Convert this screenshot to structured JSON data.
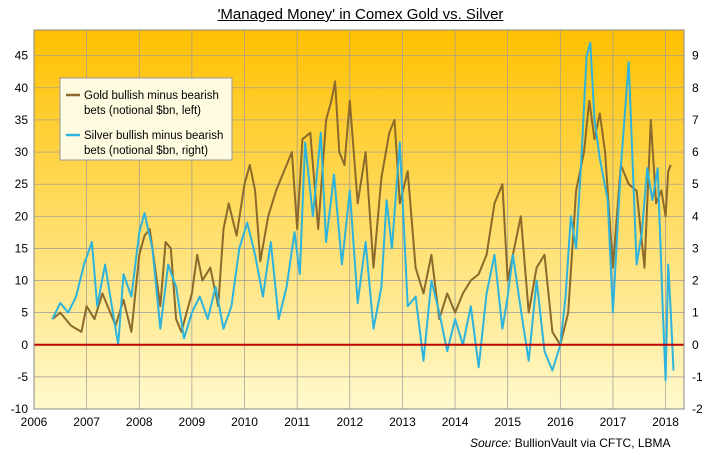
{
  "chart_data": {
    "type": "line",
    "title": "'Managed Money' in Comex Gold vs. Silver",
    "source_label": "Source:",
    "source_text": "BullionVault via CFTC, LBMA",
    "x_ticks": [
      "2006",
      "2007",
      "2008",
      "2009",
      "2010",
      "2011",
      "2012",
      "2013",
      "2014",
      "2015",
      "2016",
      "2017",
      "2018"
    ],
    "xlim": [
      2006,
      2018.35
    ],
    "left_axis": {
      "ylim": [
        -10,
        49
      ],
      "ticks": [
        "-10",
        "-5",
        "0",
        "5",
        "10",
        "15",
        "20",
        "25",
        "30",
        "35",
        "40",
        "45"
      ]
    },
    "right_axis": {
      "ylim": [
        -2,
        9.8
      ],
      "ticks": [
        "-2",
        "-1",
        "0",
        "1",
        "2",
        "3",
        "4",
        "5",
        "6",
        "7",
        "8",
        "9"
      ]
    },
    "zero_line_color": "#c00000",
    "background_gradient": [
      "#fff9cc",
      "#ffc000"
    ],
    "legend_position": "top-left",
    "series": [
      {
        "name": "Gold bullish minus bearish bets (notional $bn, left)",
        "color": "#8b6a2b",
        "axis": "left",
        "x": [
          2006.35,
          2006.5,
          2006.7,
          2006.9,
          2007.0,
          2007.15,
          2007.3,
          2007.45,
          2007.55,
          2007.7,
          2007.85,
          2008.0,
          2008.1,
          2008.2,
          2008.3,
          2008.4,
          2008.5,
          2008.6,
          2008.7,
          2008.8,
          2008.9,
          2009.0,
          2009.1,
          2009.2,
          2009.35,
          2009.5,
          2009.6,
          2009.7,
          2009.85,
          2010.0,
          2010.1,
          2010.2,
          2010.3,
          2010.45,
          2010.6,
          2010.75,
          2010.9,
          2011.0,
          2011.1,
          2011.25,
          2011.4,
          2011.55,
          2011.65,
          2011.72,
          2011.8,
          2011.9,
          2012.0,
          2012.15,
          2012.3,
          2012.45,
          2012.6,
          2012.75,
          2012.85,
          2012.95,
          2013.1,
          2013.25,
          2013.4,
          2013.55,
          2013.7,
          2013.85,
          2014.0,
          2014.15,
          2014.3,
          2014.45,
          2014.6,
          2014.75,
          2014.9,
          2015.0,
          2015.1,
          2015.25,
          2015.4,
          2015.55,
          2015.7,
          2015.85,
          2016.0,
          2016.15,
          2016.3,
          2016.45,
          2016.55,
          2016.65,
          2016.75,
          2016.85,
          2017.0,
          2017.15,
          2017.3,
          2017.45,
          2017.6,
          2017.72,
          2017.82,
          2017.92,
          2018.0,
          2018.05,
          2018.1
        ],
        "values": [
          4,
          5,
          3,
          2,
          6,
          4,
          8,
          5,
          3,
          7,
          2,
          14,
          17,
          18,
          12,
          6,
          16,
          15,
          4,
          2,
          5,
          8,
          14,
          10,
          12,
          6,
          18,
          22,
          17,
          25,
          28,
          24,
          13,
          20,
          24,
          27,
          30,
          18,
          32,
          33,
          18,
          35,
          38,
          41,
          30,
          28,
          38,
          22,
          30,
          12,
          26,
          33,
          35,
          22,
          27,
          12,
          8,
          14,
          4,
          8,
          5,
          8,
          10,
          11,
          14,
          22,
          25,
          10,
          14,
          20,
          5,
          12,
          14,
          2,
          0,
          5,
          24,
          30,
          38,
          32,
          36,
          30,
          12,
          28,
          25,
          24,
          12,
          35,
          22,
          24,
          20,
          27,
          28
        ]
      },
      {
        "name": "Silver bullish minus bearish bets (notional $bn, right)",
        "color": "#2eb3dc",
        "axis": "right",
        "x": [
          2006.35,
          2006.5,
          2006.65,
          2006.8,
          2006.95,
          2007.1,
          2007.2,
          2007.35,
          2007.5,
          2007.6,
          2007.7,
          2007.85,
          2008.0,
          2008.1,
          2008.25,
          2008.4,
          2008.55,
          2008.7,
          2008.85,
          2009.0,
          2009.15,
          2009.3,
          2009.45,
          2009.6,
          2009.75,
          2009.9,
          2010.05,
          2010.2,
          2010.35,
          2010.5,
          2010.65,
          2010.8,
          2010.95,
          2011.05,
          2011.15,
          2011.3,
          2011.45,
          2011.55,
          2011.7,
          2011.85,
          2012.0,
          2012.15,
          2012.3,
          2012.45,
          2012.6,
          2012.7,
          2012.8,
          2012.95,
          2013.1,
          2013.25,
          2013.4,
          2013.55,
          2013.7,
          2013.85,
          2014.0,
          2014.15,
          2014.3,
          2014.45,
          2014.6,
          2014.75,
          2014.9,
          2015.0,
          2015.1,
          2015.25,
          2015.4,
          2015.55,
          2015.7,
          2015.85,
          2016.0,
          2016.1,
          2016.2,
          2016.3,
          2016.4,
          2016.5,
          2016.57,
          2016.65,
          2016.75,
          2016.9,
          2017.0,
          2017.15,
          2017.3,
          2017.45,
          2017.55,
          2017.65,
          2017.75,
          2017.85,
          2017.95,
          2018.0,
          2018.05,
          2018.1,
          2018.15
        ],
        "values": [
          0.8,
          1.3,
          1.0,
          1.5,
          2.5,
          3.2,
          1.2,
          2.5,
          1.0,
          0.0,
          2.2,
          1.5,
          3.5,
          4.1,
          3.0,
          0.5,
          2.5,
          1.8,
          0.2,
          1.0,
          1.5,
          0.8,
          1.8,
          0.5,
          1.2,
          3.0,
          3.8,
          2.8,
          1.5,
          3.2,
          0.8,
          1.8,
          3.5,
          2.2,
          6.3,
          4.0,
          6.6,
          3.2,
          5.3,
          2.5,
          4.8,
          1.3,
          3.2,
          0.5,
          1.8,
          4.5,
          3.0,
          6.3,
          1.2,
          1.5,
          -0.5,
          2.0,
          1.0,
          -0.2,
          0.8,
          0.0,
          1.2,
          -0.7,
          1.6,
          2.8,
          0.5,
          1.5,
          2.8,
          1.1,
          -0.5,
          2.0,
          -0.2,
          -0.8,
          0.0,
          1.5,
          4.0,
          3.0,
          5.8,
          9.0,
          9.4,
          7.0,
          5.8,
          4.5,
          1.0,
          5.5,
          8.8,
          2.5,
          3.5,
          5.5,
          4.5,
          5.5,
          1.0,
          -1.1,
          2.5,
          1.0,
          -0.8
        ]
      }
    ]
  }
}
